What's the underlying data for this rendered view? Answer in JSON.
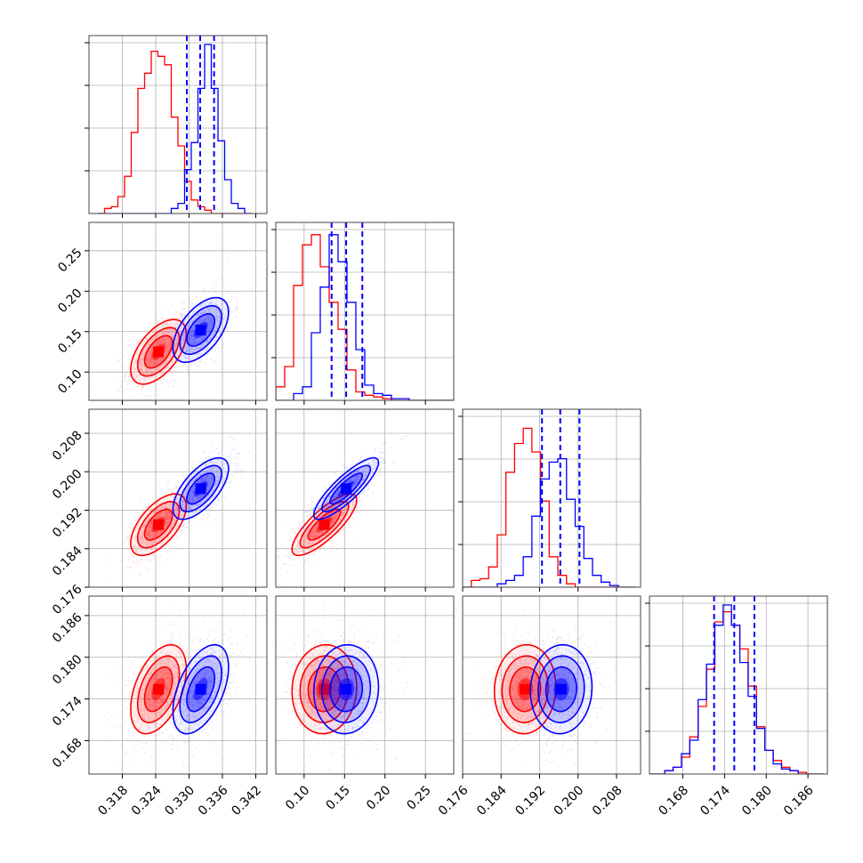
{
  "colors": {
    "series_a": "#ff0000",
    "series_b": "#0000ff",
    "grid": "#b0b0b0",
    "frame": "#000000"
  },
  "chart_data": {
    "type": "corner",
    "grid": true,
    "parameters": [
      {
        "range": [
          0.312,
          0.344
        ],
        "ticks": [
          "0.318",
          "0.324",
          "0.330",
          "0.336",
          "0.342"
        ],
        "tick_values": [
          0.318,
          0.324,
          0.33,
          0.336,
          0.342
        ]
      },
      {
        "range": [
          0.065,
          0.285
        ],
        "ticks": [
          "0.10",
          "0.15",
          "0.20",
          "0.25"
        ],
        "tick_values": [
          0.1,
          0.15,
          0.2,
          0.25
        ]
      },
      {
        "range": [
          0.176,
          0.213
        ],
        "ticks": [
          "0.176",
          "0.184",
          "0.192",
          "0.200",
          "0.208"
        ],
        "tick_values": [
          0.176,
          0.184,
          0.192,
          0.2,
          0.208
        ]
      },
      {
        "range": [
          0.1632,
          0.1888
        ],
        "ticks": [
          "0.168",
          "0.174",
          "0.180",
          "0.186"
        ],
        "tick_values": [
          0.168,
          0.174,
          0.18,
          0.186
        ]
      }
    ],
    "series": [
      {
        "color": "red",
        "mean": [
          0.3245,
          0.125,
          0.189,
          0.1754
        ],
        "std": [
          0.0025,
          0.02,
          0.0032,
          0.0032
        ]
      },
      {
        "color": "blue",
        "mean": [
          0.3321,
          0.152,
          0.1965,
          0.1754
        ],
        "std": [
          0.0025,
          0.02,
          0.0032,
          0.0032
        ]
      }
    ],
    "quantile_lines": {
      "series": "blue",
      "values": [
        [
          0.3296,
          0.332,
          0.3345
        ],
        [
          0.134,
          0.152,
          0.172
        ],
        [
          0.1925,
          0.1963,
          0.2003
        ],
        [
          0.1725,
          0.1754,
          0.1783
        ]
      ]
    },
    "histograms": [
      {
        "bin_edges": [
          0.3136,
          0.3148,
          0.316,
          0.3172,
          0.3184,
          0.3196,
          0.3208,
          0.322,
          0.3232,
          0.3244,
          0.3256,
          0.3268,
          0.328,
          0.3292,
          0.3304,
          0.3316,
          0.3328,
          0.334,
          0.3352,
          0.3364,
          0.3376,
          0.3388,
          0.34,
          0.3412
        ],
        "red": [
          0.0,
          0.03,
          0.04,
          0.1,
          0.22,
          0.48,
          0.74,
          0.83,
          0.96,
          0.93,
          0.88,
          0.57,
          0.4,
          0.19,
          0.08,
          0.04,
          0.02,
          0.0,
          0.0,
          0.0,
          0.0,
          0.0,
          0.0
        ],
        "blue": [
          0.0,
          0.0,
          0.0,
          0.0,
          0.0,
          0.0,
          0.0,
          0.0,
          0.0,
          0.0,
          0.0,
          0.03,
          0.06,
          0.26,
          0.42,
          0.74,
          1.0,
          0.74,
          0.43,
          0.2,
          0.06,
          0.03,
          0.0
        ]
      },
      {
        "bin_edges": [
          0.065,
          0.076,
          0.087,
          0.098,
          0.109,
          0.12,
          0.131,
          0.142,
          0.153,
          0.164,
          0.175,
          0.186,
          0.197,
          0.208,
          0.219,
          0.23,
          0.241,
          0.252,
          0.263,
          0.274,
          0.285
        ],
        "red": [
          0.08,
          0.2,
          0.68,
          0.92,
          0.98,
          0.79,
          0.58,
          0.42,
          0.18,
          0.05,
          0.03,
          0.02,
          0.01,
          0.0,
          0.0,
          0.0,
          0.0,
          0.0,
          0.0,
          0.0
        ],
        "blue": [
          0.0,
          0.0,
          0.04,
          0.08,
          0.4,
          0.67,
          0.98,
          0.82,
          0.58,
          0.3,
          0.09,
          0.04,
          0.03,
          0.01,
          0.01,
          0.0,
          0.0,
          0.0,
          0.0,
          0.0
        ]
      },
      {
        "bin_edges": [
          0.176,
          0.1778,
          0.1796,
          0.1814,
          0.1832,
          0.185,
          0.1868,
          0.1886,
          0.1904,
          0.1922,
          0.194,
          0.1958,
          0.1976,
          0.1994,
          0.2012,
          0.203,
          0.2048,
          0.2066,
          0.2084,
          0.2102,
          0.212
        ],
        "red": [
          0.0,
          0.04,
          0.05,
          0.12,
          0.31,
          0.68,
          0.85,
          0.94,
          0.8,
          0.51,
          0.18,
          0.07,
          0.02,
          0.0,
          0.0,
          0.0,
          0.0,
          0.0,
          0.0,
          0.0
        ],
        "blue": [
          0.0,
          0.0,
          0.0,
          0.0,
          0.02,
          0.04,
          0.07,
          0.18,
          0.42,
          0.64,
          0.74,
          0.76,
          0.52,
          0.36,
          0.17,
          0.07,
          0.03,
          0.01,
          0.0,
          0.0
        ]
      },
      {
        "bin_edges": [
          0.163,
          0.1642,
          0.1654,
          0.1666,
          0.1678,
          0.169,
          0.1702,
          0.1714,
          0.1726,
          0.1738,
          0.175,
          0.1762,
          0.1774,
          0.1786,
          0.1798,
          0.181,
          0.1822,
          0.1834,
          0.1846,
          0.1858,
          0.187,
          0.1882
        ],
        "red": [
          0.0,
          0.0,
          0.02,
          0.04,
          0.1,
          0.22,
          0.4,
          0.62,
          0.9,
          0.96,
          0.88,
          0.74,
          0.52,
          0.28,
          0.14,
          0.08,
          0.04,
          0.02,
          0.01,
          0.0,
          0.0
        ],
        "blue": [
          0.0,
          0.0,
          0.02,
          0.04,
          0.12,
          0.2,
          0.44,
          0.65,
          0.88,
          1.0,
          0.88,
          0.66,
          0.46,
          0.27,
          0.14,
          0.06,
          0.03,
          0.02,
          0.0,
          0.0,
          0.0
        ]
      }
    ],
    "covariances": {
      "red": {
        "1,0": 0.55,
        "2,0": 0.6,
        "2,1": 0.8,
        "3,0": 0.45,
        "3,1": 0.05,
        "3,2": 0.05
      },
      "blue": {
        "1,0": 0.55,
        "2,0": 0.65,
        "2,1": 0.85,
        "3,0": 0.5,
        "3,1": 0.05,
        "3,2": 0.05
      }
    }
  }
}
